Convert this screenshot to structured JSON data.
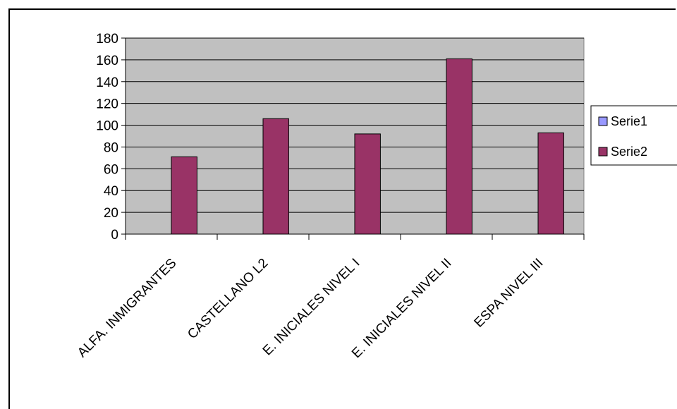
{
  "chart_data": {
    "type": "bar",
    "categories": [
      "ALFA. INMIGRANTES",
      "CASTELLANO L2",
      "E. INICIALES NIVEL I",
      "E. INICIALES NIVEL II",
      "ESPA NIVEL III"
    ],
    "series": [
      {
        "name": "Serie1",
        "values": [
          0,
          0,
          0,
          0,
          0
        ],
        "color": "#9999FF"
      },
      {
        "name": "Serie2",
        "values": [
          71,
          106,
          92,
          161,
          93
        ],
        "color": "#993366"
      }
    ],
    "y_ticks": [
      "0",
      "20",
      "40",
      "60",
      "80",
      "100",
      "120",
      "140",
      "160",
      "180"
    ],
    "ylim": [
      0,
      180
    ],
    "grid": true,
    "plot_background": "#C0C0C0",
    "legend_position": "right"
  }
}
